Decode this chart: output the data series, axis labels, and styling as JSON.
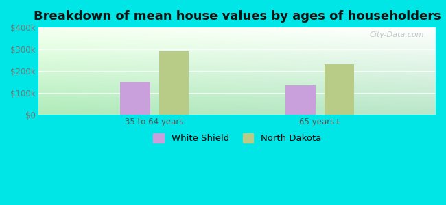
{
  "title": "Breakdown of mean house values by ages of householders",
  "categories": [
    "35 to 64 years",
    "65 years+"
  ],
  "series": {
    "White Shield": [
      150000,
      135000
    ],
    "North Dakota": [
      290000,
      230000
    ]
  },
  "colors": {
    "White Shield": "#c9a0dc",
    "North Dakota": "#b8cc88"
  },
  "ylim": [
    0,
    400000
  ],
  "yticks": [
    0,
    100000,
    200000,
    300000,
    400000
  ],
  "ytick_labels": [
    "$0",
    "$100k",
    "$200k",
    "$300k",
    "$400k"
  ],
  "background_color": "#00e5e5",
  "bar_width": 0.18,
  "title_fontsize": 13,
  "tick_fontsize": 8.5,
  "legend_fontsize": 9.5,
  "watermark": "City-Data.com"
}
